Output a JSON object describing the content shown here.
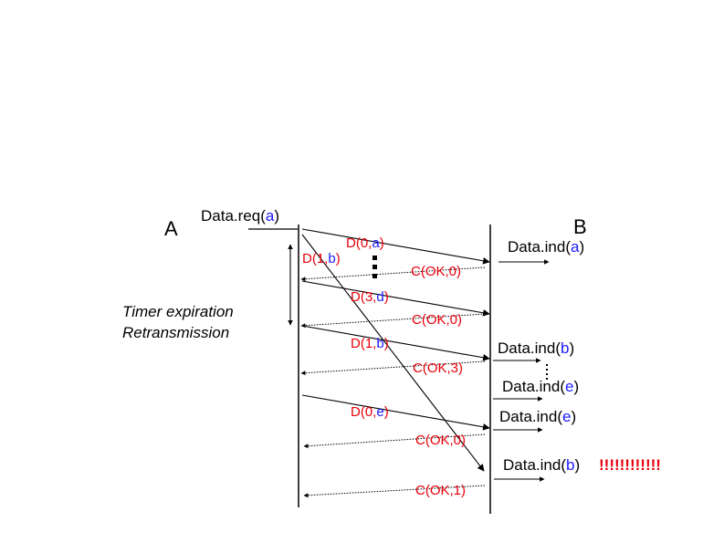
{
  "colors": {
    "red": "#e8000b",
    "blue": "#1a1aff",
    "black": "#000000"
  },
  "entities": {
    "a": "A",
    "b": "B"
  },
  "request": {
    "prefix": "Data.req(",
    "arg": "a",
    "suffix": ")"
  },
  "timer_note": {
    "line1": "Timer expiration",
    "line2": "Retransmission"
  },
  "frames": {
    "d0a": {
      "prefix": "D(0,",
      "arg": "a",
      "suffix": ")"
    },
    "d1b_first": {
      "prefix": "D(1,",
      "arg": "b",
      "suffix": ")"
    },
    "d3d": {
      "prefix": "D(3,",
      "arg": "d",
      "suffix": ")"
    },
    "d1b_retx": {
      "prefix": "D(1,",
      "arg": "b",
      "suffix": ")"
    },
    "d0e": {
      "prefix": "D(0,",
      "arg": "e",
      "suffix": ")"
    }
  },
  "acks": {
    "c1": "C(OK,0)",
    "c2": "C(OK,0)",
    "c3": "C(OK,3)",
    "c4": "C(OK,0)",
    "c5": "C(OK,1)"
  },
  "indications": {
    "ind_a": {
      "prefix": "Data.ind(",
      "arg": "a",
      "suffix": ")"
    },
    "ind_b1": {
      "prefix": "Data.ind(",
      "arg": "b",
      "suffix": ")"
    },
    "ind_e1": {
      "prefix": "Data.ind(",
      "arg": "e",
      "suffix": ")"
    },
    "ind_e2": {
      "prefix": "Data.ind(",
      "arg": "e",
      "suffix": ")"
    },
    "ind_b2": {
      "prefix": "Data.ind(",
      "arg": "b",
      "suffix": ")",
      "alarm": "!!!!!!!!!!!!"
    }
  }
}
